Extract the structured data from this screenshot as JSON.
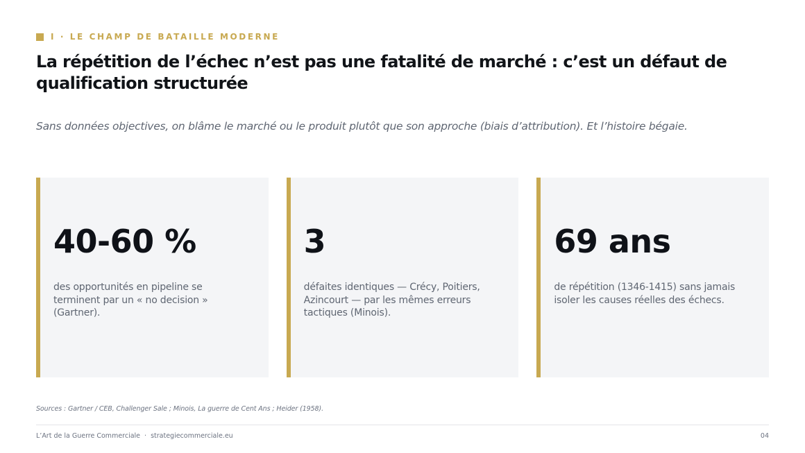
{
  "header": {
    "section_label": "I · LE CHAMP DE BATAILLE MODERNE",
    "title": "La répétition de l’échec n’est pas une fatalité de marché : c’est un défaut de qualification structurée",
    "subtitle": "Sans données objectives, on blâme le marché ou le produit plutôt que son approche (biais d’attribution). Et l’histoire bégaie."
  },
  "stats": [
    {
      "value": "40-60 %",
      "description": "des opportunités en pipeline se terminent par un « no decision » (Gartner)."
    },
    {
      "value": "3",
      "description": "défaites identiques — Crécy, Poitiers, Azincourt — par les mêmes erreurs tactiques (Minois)."
    },
    {
      "value": "69 ans",
      "description": "de répétition (1346-1415) sans jamais isoler les causes réelles des échecs."
    }
  ],
  "sources": "Sources : Gartner / CEB, Challenger Sale ; Minois, La guerre de Cent Ans ; Heider (1958).",
  "footer": {
    "brand": "L’Art de la Guerre Commerciale",
    "separator": "·",
    "site": "strategiecommerciale.eu",
    "page_number": "04"
  },
  "colors": {
    "accent": "#c8a951",
    "card_background": "#f4f5f7",
    "title": "#111418",
    "muted_text": "#5f6672"
  }
}
